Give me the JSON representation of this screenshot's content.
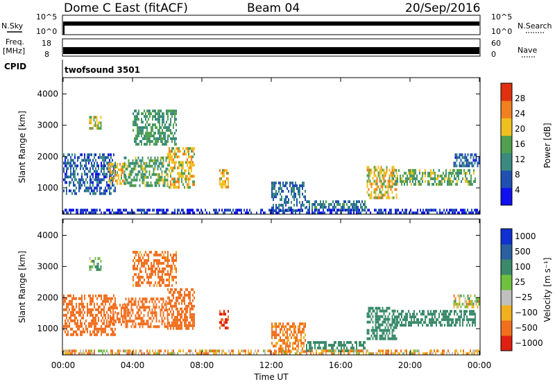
{
  "header": {
    "radar_title": "Dome C East (fitACF)",
    "beam": "Beam 04",
    "date": "20/Sep/2016"
  },
  "strip_nsky": {
    "left_label": "N.Sky",
    "left_ticks": [
      "10^5",
      "10^0"
    ],
    "right_label": "N.Search",
    "right_ticks": [
      "10^5",
      "10^0"
    ]
  },
  "strip_freq": {
    "left_label_line1": "Freq.",
    "left_label_line2": "[MHz]",
    "left_ticks": [
      "18",
      "8"
    ],
    "right_label": "Nave",
    "right_ticks": [
      "60",
      "0"
    ]
  },
  "cpid": {
    "label": "CPID",
    "program": "twofsound 3501"
  },
  "chart_data": [
    {
      "type": "heatmap",
      "panel": "power",
      "title": "",
      "xlabel": "",
      "ylabel": "Slant Range [km]",
      "xlim_hours": [
        0,
        24
      ],
      "ylim_km": [
        180,
        4500
      ],
      "yticks": [
        "1000",
        "2000",
        "3000",
        "4000"
      ],
      "colorbar": {
        "label": "Power [dB]",
        "ticks": [
          "4",
          "8",
          "12",
          "16",
          "20",
          "24",
          "28"
        ],
        "colors": [
          "#1010ee",
          "#2050b0",
          "#3a8a80",
          "#50a050",
          "#f0c020",
          "#f08020",
          "#e03010"
        ]
      },
      "regions": [
        {
          "t0": 0.0,
          "t1": 3.0,
          "r0": 800,
          "r1": 2100,
          "level": 9
        },
        {
          "t0": 1.5,
          "t1": 2.2,
          "r0": 2900,
          "r1": 3300,
          "level": 19
        },
        {
          "t0": 2.6,
          "t1": 3.6,
          "r0": 1100,
          "r1": 1800,
          "level": 20
        },
        {
          "t0": 3.5,
          "t1": 6.0,
          "r0": 1100,
          "r1": 2000,
          "level": 15
        },
        {
          "t0": 4.0,
          "t1": 6.5,
          "r0": 2400,
          "r1": 3500,
          "level": 14
        },
        {
          "t0": 6.0,
          "t1": 7.6,
          "r0": 1000,
          "r1": 2300,
          "level": 20
        },
        {
          "t0": 9.0,
          "t1": 9.5,
          "r0": 1000,
          "r1": 1600,
          "level": 20
        },
        {
          "t0": 12.0,
          "t1": 14.0,
          "r0": 250,
          "r1": 1200,
          "level": 10
        },
        {
          "t0": 14.0,
          "t1": 17.5,
          "r0": 250,
          "r1": 600,
          "level": 11
        },
        {
          "t0": 17.5,
          "t1": 19.2,
          "r0": 700,
          "r1": 1700,
          "level": 20
        },
        {
          "t0": 19.0,
          "t1": 23.8,
          "r0": 1100,
          "r1": 1600,
          "level": 16
        },
        {
          "t0": 22.5,
          "t1": 24.0,
          "r0": 1700,
          "r1": 2100,
          "level": 9
        },
        {
          "t0": 0.0,
          "t1": 24.0,
          "r0": 190,
          "r1": 330,
          "level": 6
        }
      ]
    },
    {
      "type": "heatmap",
      "panel": "velocity",
      "title": "",
      "xlabel": "Time UT",
      "ylabel": "Slant Range [km]",
      "xlim_hours": [
        0,
        24
      ],
      "ylim_km": [
        180,
        4500
      ],
      "xticks": [
        "00:00",
        "04:00",
        "08:00",
        "12:00",
        "16:00",
        "20:00",
        "00:00"
      ],
      "yticks": [
        "1000",
        "2000",
        "3000",
        "4000"
      ],
      "colorbar": {
        "label": "Velocity [m s⁻¹]",
        "ticks": [
          "1000",
          "500",
          "100",
          "25",
          "−25",
          "−100",
          "−500",
          "−1000"
        ],
        "colors": [
          "#1030d0",
          "#2a60a0",
          "#3a8a6a",
          "#70c040",
          "#c0c0c0",
          "#f0b020",
          "#f07020",
          "#e02010"
        ]
      },
      "regions": [
        {
          "t0": 0.0,
          "t1": 3.0,
          "r0": 800,
          "r1": 2100,
          "level": -150
        },
        {
          "t0": 1.5,
          "t1": 2.2,
          "r0": 2900,
          "r1": 3300,
          "level": 50
        },
        {
          "t0": 2.6,
          "t1": 3.6,
          "r0": 1100,
          "r1": 1800,
          "level": -200
        },
        {
          "t0": 3.5,
          "t1": 6.0,
          "r0": 1100,
          "r1": 2000,
          "level": -150
        },
        {
          "t0": 4.0,
          "t1": 6.5,
          "r0": 2400,
          "r1": 3500,
          "level": -120
        },
        {
          "t0": 6.0,
          "t1": 7.6,
          "r0": 1000,
          "r1": 2300,
          "level": -200
        },
        {
          "t0": 9.0,
          "t1": 9.5,
          "r0": 1000,
          "r1": 1600,
          "level": -300
        },
        {
          "t0": 12.0,
          "t1": 14.0,
          "r0": 250,
          "r1": 1200,
          "level": -100
        },
        {
          "t0": 14.0,
          "t1": 17.5,
          "r0": 250,
          "r1": 600,
          "level": 150
        },
        {
          "t0": 17.5,
          "t1": 19.2,
          "r0": 700,
          "r1": 1700,
          "level": 200
        },
        {
          "t0": 19.0,
          "t1": 23.8,
          "r0": 1100,
          "r1": 1600,
          "level": 180
        },
        {
          "t0": 22.5,
          "t1": 24.0,
          "r0": 1700,
          "r1": 2100,
          "level": 0
        },
        {
          "t0": 0.0,
          "t1": 24.0,
          "r0": 190,
          "r1": 330,
          "level": -40
        }
      ]
    }
  ]
}
